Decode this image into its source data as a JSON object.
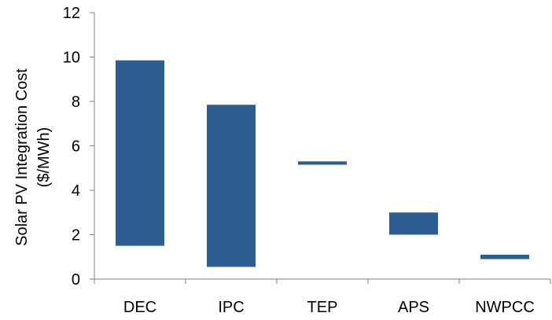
{
  "chart_data": {
    "type": "bar",
    "subtype": "floating-range",
    "categories": [
      "DEC",
      "IPC",
      "TEP",
      "APS",
      "NWPCC"
    ],
    "series": [
      {
        "low": [
          1.5,
          0.55,
          5.15,
          2.0,
          0.9
        ],
        "high": [
          9.85,
          7.85,
          5.3,
          3.0,
          1.1
        ]
      }
    ],
    "ylabel": "Solar PV Integration Cost ($/MWh)",
    "ylabel_lines": [
      "Solar PV Integration Cost",
      "($/MWh)"
    ],
    "ylim": [
      0,
      12
    ],
    "yticks": [
      "0",
      "2",
      "4",
      "6",
      "8",
      "10",
      "12"
    ],
    "grid": false,
    "legend": "none",
    "colors": {
      "bar": "#2E5D91",
      "axis": "#808080"
    }
  }
}
